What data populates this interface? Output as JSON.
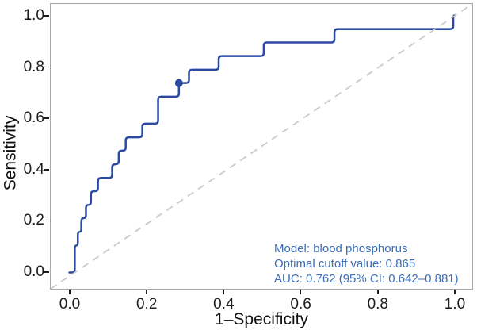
{
  "figure": {
    "background": "#ffffff",
    "panel_border_color": "#a5a7ac",
    "curve_color": "#2b4aa3",
    "optimal_dot_color": "#2b4aa3",
    "diagonal_color": "#cbcbcb",
    "tick_color": "#1c1c1e",
    "axis_text_color": "#111111",
    "annotation_color": "#3a6eb8"
  },
  "axes": {
    "x_label": "1–Specificity",
    "y_label": "Sensitivity",
    "x_ticks": [
      "0.0",
      "0.2",
      "0.4",
      "0.6",
      "0.8",
      "1.0"
    ],
    "y_ticks": [
      "0.0",
      "0.2",
      "0.4",
      "0.6",
      "0.8",
      "1.0"
    ]
  },
  "annotation": {
    "line1": "Model: blood phosphorus",
    "line2": "Optimal cutoff value: 0.865",
    "line3": "AUC: 0.762 (95% CI: 0.642–0.881)"
  },
  "chart_data": {
    "type": "line",
    "subtype": "roc-curve",
    "title": "",
    "xlabel": "1–Specificity",
    "ylabel": "Sensitivity",
    "xlim": [
      0,
      1
    ],
    "ylim": [
      0,
      1
    ],
    "grid": false,
    "legend_position": "none",
    "series": [
      {
        "name": "ROC curve (blood phosphorus)",
        "style": "solid",
        "points": [
          [
            0.0,
            0.0
          ],
          [
            0.014,
            0.0
          ],
          [
            0.014,
            0.105
          ],
          [
            0.022,
            0.105
          ],
          [
            0.022,
            0.158
          ],
          [
            0.031,
            0.158
          ],
          [
            0.031,
            0.211
          ],
          [
            0.043,
            0.211
          ],
          [
            0.043,
            0.263
          ],
          [
            0.056,
            0.263
          ],
          [
            0.056,
            0.316
          ],
          [
            0.074,
            0.316
          ],
          [
            0.074,
            0.368
          ],
          [
            0.111,
            0.368
          ],
          [
            0.111,
            0.421
          ],
          [
            0.128,
            0.421
          ],
          [
            0.128,
            0.474
          ],
          [
            0.146,
            0.474
          ],
          [
            0.146,
            0.526
          ],
          [
            0.189,
            0.526
          ],
          [
            0.189,
            0.579
          ],
          [
            0.23,
            0.579
          ],
          [
            0.23,
            0.684
          ],
          [
            0.284,
            0.684
          ],
          [
            0.284,
            0.737
          ],
          [
            0.31,
            0.737
          ],
          [
            0.31,
            0.789
          ],
          [
            0.387,
            0.789
          ],
          [
            0.387,
            0.842
          ],
          [
            0.504,
            0.842
          ],
          [
            0.504,
            0.895
          ],
          [
            0.687,
            0.895
          ],
          [
            0.687,
            0.947
          ],
          [
            0.995,
            0.947
          ],
          [
            0.995,
            1.0
          ],
          [
            1.0,
            1.0
          ]
        ]
      },
      {
        "name": "reference diagonal",
        "style": "dashed",
        "points": [
          [
            0,
            0
          ],
          [
            1,
            1
          ]
        ]
      }
    ],
    "optimal_point": {
      "x": 0.284,
      "y": 0.737,
      "cutoff_value": 0.865
    },
    "auc": 0.762,
    "ci_95": [
      0.642,
      0.881
    ]
  }
}
